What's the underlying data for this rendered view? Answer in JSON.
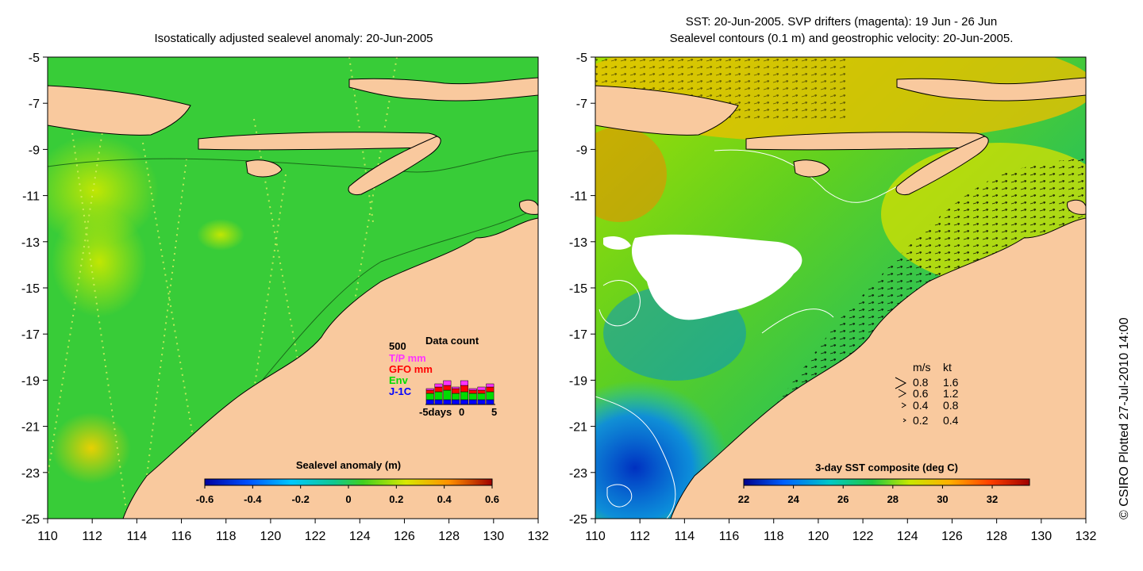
{
  "left_panel": {
    "title": "Isostatically adjusted sealevel anomaly: 20-Jun-2005",
    "y_ticks": [
      "-5",
      "-7",
      "-9",
      "-11",
      "-13",
      "-15",
      "-17",
      "-19",
      "-21",
      "-23",
      "-25"
    ],
    "x_ticks": [
      "110",
      "112",
      "114",
      "116",
      "118",
      "120",
      "122",
      "124",
      "126",
      "128",
      "130",
      "132"
    ],
    "colorbar": {
      "label": "Sealevel anomaly (m)",
      "ticks": [
        "-0.6",
        "-0.4",
        "-0.2",
        "0",
        "0.2",
        "0.4",
        "0.6"
      ],
      "range": [
        -0.6,
        0.6
      ]
    },
    "data_count": {
      "title": "Data count",
      "max_label": "500",
      "legend": [
        {
          "label": "T/P mm",
          "color": "#ff33ff"
        },
        {
          "label": "GFO mm",
          "color": "#ff0000"
        },
        {
          "label": "Env",
          "color": "#00dd00"
        },
        {
          "label": "J-1C",
          "color": "#0000ff"
        }
      ],
      "x_axis": {
        "left": "-5days",
        "mid": "0",
        "right": "5"
      }
    }
  },
  "right_panel": {
    "title_line1": "SST: 20-Jun-2005. SVP drifters (magenta): 19 Jun - 26 Jun",
    "title_line2": "Sealevel contours (0.1 m) and geostrophic velocity: 20-Jun-2005.",
    "y_ticks": [
      "-5",
      "-7",
      "-9",
      "-11",
      "-13",
      "-15",
      "-17",
      "-19",
      "-21",
      "-23",
      "-25"
    ],
    "x_ticks": [
      "110",
      "112",
      "114",
      "116",
      "118",
      "120",
      "122",
      "124",
      "126",
      "128",
      "130",
      "132"
    ],
    "colorbar": {
      "label": "3-day SST composite (deg C)",
      "ticks": [
        "22",
        "24",
        "26",
        "28",
        "30",
        "32"
      ],
      "range": [
        22,
        33.5
      ]
    },
    "velocity_legend": {
      "header_ms": "m/s",
      "header_kt": "kt",
      "rows": [
        {
          "ms": "0.8",
          "kt": "1.6"
        },
        {
          "ms": "0.6",
          "kt": "1.2"
        },
        {
          "ms": "0.4",
          "kt": "0.8"
        },
        {
          "ms": "0.2",
          "kt": "0.4"
        }
      ]
    }
  },
  "credit": "© CSIRO Plotted 27-Jul-2010 14:00",
  "colors": {
    "land": "#f9c99e",
    "ocean_green": "#33cc33",
    "cloud": "#ffffff"
  }
}
